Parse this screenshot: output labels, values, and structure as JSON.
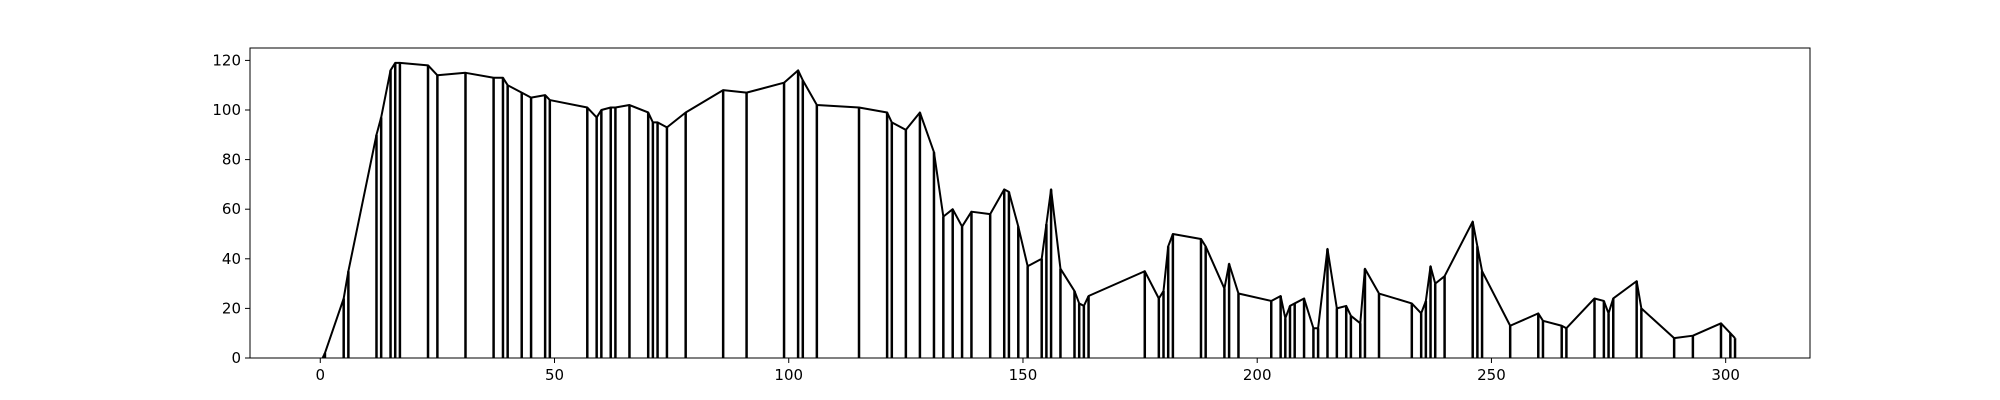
{
  "chart_data": {
    "type": "line",
    "title": "",
    "xlabel": "",
    "ylabel": "",
    "xlim": [
      -15,
      318
    ],
    "ylim": [
      0,
      125
    ],
    "xticks": [
      0,
      50,
      100,
      150,
      200,
      250,
      300
    ],
    "yticks": [
      0,
      20,
      40,
      60,
      80,
      100,
      120
    ],
    "grid": false,
    "legend": "none",
    "line_color": "#000000",
    "drop_lines": true,
    "series": [
      {
        "x": [
          0.5,
          1,
          5,
          6,
          12,
          13,
          15,
          16,
          17,
          23,
          25,
          31,
          37,
          39,
          40,
          43,
          45,
          48,
          49,
          57,
          59,
          60,
          62,
          63,
          66,
          70,
          71,
          72,
          74,
          78,
          86,
          91,
          99,
          102,
          103,
          106,
          115,
          121,
          122,
          125,
          128,
          131,
          133,
          135,
          137,
          139,
          143,
          146,
          147,
          149,
          151,
          154,
          155,
          156,
          158,
          161,
          162,
          163,
          164,
          176,
          179,
          180,
          181,
          182,
          188,
          189,
          193,
          194,
          196,
          203,
          205,
          206,
          207,
          208,
          210,
          212,
          213,
          215,
          217,
          219,
          220,
          222,
          223,
          226,
          233,
          235,
          236,
          237,
          238,
          240,
          246,
          247,
          248,
          254,
          260,
          261,
          265,
          266,
          272,
          274,
          275,
          276,
          281,
          282,
          289,
          293,
          299,
          301,
          302
        ],
        "y": [
          0,
          2,
          24,
          35,
          90,
          97,
          116,
          119,
          119,
          118,
          114,
          115,
          113,
          113,
          110,
          107,
          105,
          106,
          104,
          101,
          97,
          100,
          101,
          101,
          102,
          99,
          95,
          95,
          93,
          99,
          108,
          107,
          111,
          116,
          112,
          102,
          101,
          99,
          95,
          92,
          99,
          83,
          57,
          60,
          53,
          59,
          58,
          68,
          67,
          53,
          37,
          40,
          54,
          68,
          36,
          27,
          22,
          21,
          25,
          35,
          24,
          27,
          45,
          50,
          48,
          45,
          28,
          38,
          26,
          23,
          25,
          16,
          21,
          22,
          24,
          12,
          12,
          44,
          20,
          21,
          17,
          14,
          36,
          26,
          22,
          18,
          23,
          37,
          30,
          33,
          55,
          45,
          35,
          13,
          18,
          15,
          13,
          12,
          24,
          23,
          18,
          24,
          31,
          20,
          8,
          9,
          14,
          10,
          8
        ]
      }
    ]
  }
}
